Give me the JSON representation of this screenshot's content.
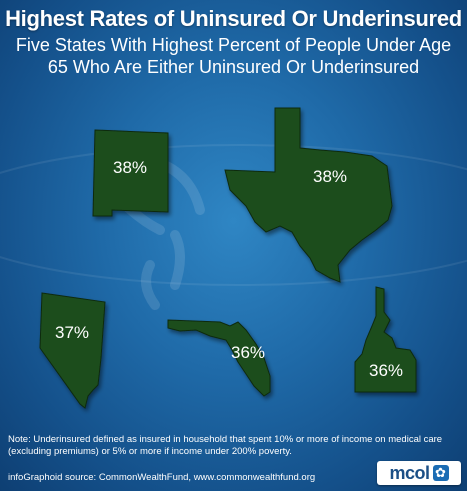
{
  "header": {
    "title": "Highest Rates of Uninsured Or Underinsured",
    "subtitle": "Five States With Highest Percent of People Under Age\n65 Who Are Either Uninsured Or Underinsured"
  },
  "states": [
    {
      "name": "new-mexico",
      "label": "38%"
    },
    {
      "name": "texas",
      "label": "38%"
    },
    {
      "name": "nevada",
      "label": "37%"
    },
    {
      "name": "florida",
      "label": "36%"
    },
    {
      "name": "idaho",
      "label": "36%"
    }
  ],
  "footer": {
    "note": "Note:  Underinsured defined as insured in household that spent 10% or more of income on medical care (excluding premiums) or 5% or more if income under 200% poverty.",
    "source": "infoGraphoid source:  CommonWealthFund, www.commonwealthfund.org"
  },
  "logo": {
    "text": "mcol",
    "icon": "flower-icon"
  },
  "colors": {
    "background": "#1f6aa8",
    "state_fill": "#1e4d1e",
    "state_stroke": "#0e2a0e"
  }
}
